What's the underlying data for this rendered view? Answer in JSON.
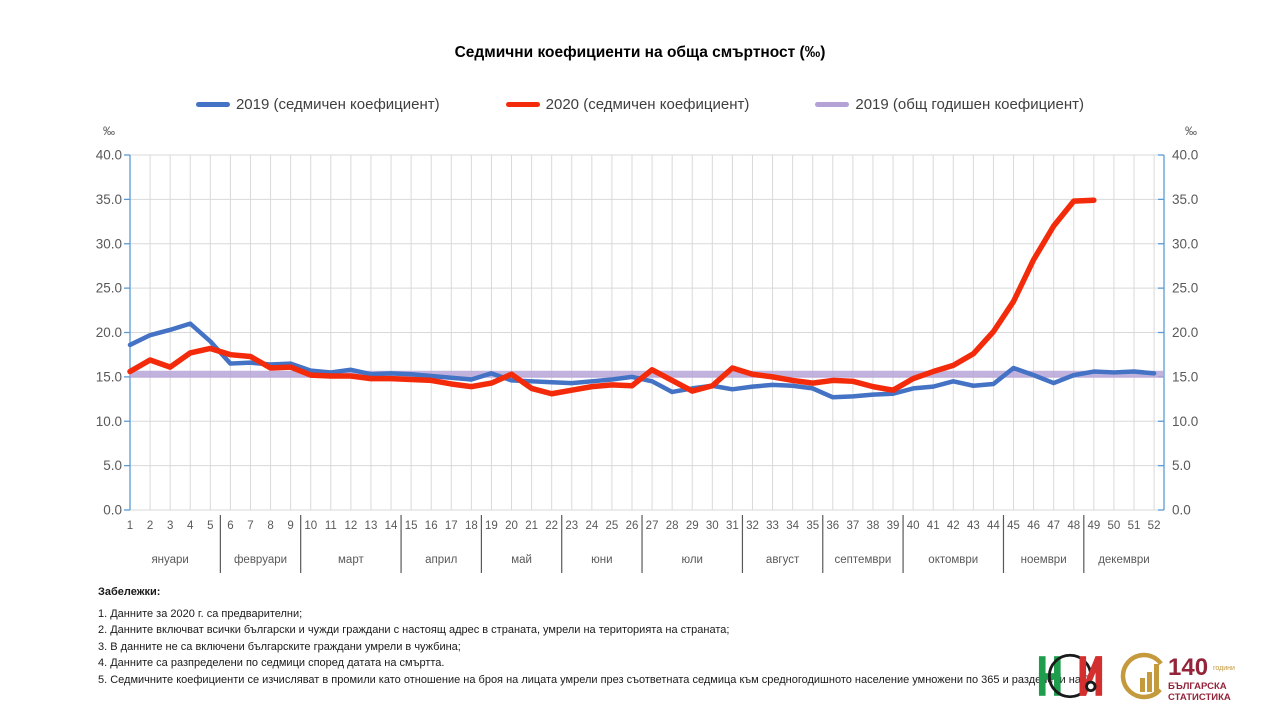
{
  "title": "Седмични коефициенти на обща смъртност (‰)",
  "legend": [
    {
      "label": "2019 (седмичен коефициент)",
      "color": "#4472C4"
    },
    {
      "label": "2020 (седмичен коефициент)",
      "color": "#F32B0A"
    },
    {
      "label": "2019 (общ годишен коефициент)",
      "color": "#B4A1D6"
    }
  ],
  "axis": {
    "unit": "‰"
  },
  "chart_data": {
    "type": "line",
    "title": "Седмични коефициенти на обща смъртност (‰)",
    "ylim": [
      0,
      40
    ],
    "ytick_step": 5,
    "unit": "‰",
    "grid": true,
    "legend_position": "top",
    "x": [
      1,
      2,
      3,
      4,
      5,
      6,
      7,
      8,
      9,
      10,
      11,
      12,
      13,
      14,
      15,
      16,
      17,
      18,
      19,
      20,
      21,
      22,
      23,
      24,
      25,
      26,
      27,
      28,
      29,
      30,
      31,
      32,
      33,
      34,
      35,
      36,
      37,
      38,
      39,
      40,
      41,
      42,
      43,
      44,
      45,
      46,
      47,
      48,
      49,
      50,
      51,
      52
    ],
    "series": [
      {
        "name": "2019 (седмичен коефициент)",
        "color": "#4472C4",
        "width": 4.5,
        "values": [
          18.6,
          19.7,
          20.3,
          21.0,
          19.0,
          16.5,
          16.6,
          16.4,
          16.5,
          15.7,
          15.5,
          15.8,
          15.3,
          15.4,
          15.3,
          15.1,
          14.9,
          14.7,
          15.4,
          14.6,
          14.5,
          14.4,
          14.3,
          14.5,
          14.7,
          15.0,
          14.5,
          13.3,
          13.7,
          14.0,
          13.6,
          13.9,
          14.1,
          14.0,
          13.7,
          12.7,
          12.8,
          13.0,
          13.1,
          13.7,
          13.9,
          14.5,
          14.0,
          14.2,
          16.0,
          15.2,
          14.3,
          15.2,
          15.6,
          15.5,
          15.6,
          15.4
        ]
      },
      {
        "name": "2020 (седмичен коефициент)",
        "color": "#F32B0A",
        "width": 5.5,
        "values": [
          15.6,
          16.9,
          16.1,
          17.7,
          18.2,
          17.5,
          17.3,
          16.0,
          16.1,
          15.2,
          15.1,
          15.1,
          14.8,
          14.8,
          14.7,
          14.6,
          14.2,
          13.9,
          14.3,
          15.3,
          13.7,
          13.1,
          13.5,
          13.9,
          14.1,
          14.0,
          15.8,
          14.6,
          13.4,
          14.0,
          16.0,
          15.3,
          15.0,
          14.6,
          14.3,
          14.6,
          14.5,
          13.9,
          13.5,
          14.8,
          15.6,
          16.3,
          17.6,
          20.1,
          23.5,
          28.2,
          32.0,
          34.8,
          34.9
        ]
      },
      {
        "name": "2019 (общ годишен коефициент)",
        "color": "#B4A1D6",
        "width": 7,
        "type": "constant",
        "value": 15.3
      }
    ],
    "months": [
      {
        "label": "януари",
        "from": 1,
        "to": 5
      },
      {
        "label": "февруари",
        "from": 6,
        "to": 9
      },
      {
        "label": "март",
        "from": 10,
        "to": 14
      },
      {
        "label": "април",
        "from": 15,
        "to": 18
      },
      {
        "label": "май",
        "from": 19,
        "to": 22
      },
      {
        "label": "юни",
        "from": 23,
        "to": 26
      },
      {
        "label": "юли",
        "from": 27,
        "to": 31
      },
      {
        "label": "август",
        "from": 32,
        "to": 35
      },
      {
        "label": "септември",
        "from": 36,
        "to": 39
      },
      {
        "label": "октомври",
        "from": 40,
        "to": 44
      },
      {
        "label": "ноември",
        "from": 45,
        "to": 48
      },
      {
        "label": "декември",
        "from": 49,
        "to": 52
      }
    ]
  },
  "notes": {
    "header": "Забележки:",
    "items": [
      "1. Данните за 2020 г. са предварителни;",
      "2. Данните включват всички български и чужди граждани с настоящ адрес в страната, умрели на територията на страната;",
      "3. В данните не са включени българските граждани умрели в чужбина;",
      "4. Данните са разпределени по седмици според датата на смъртта.",
      "5. Седмичните коефициенти се изчисляват в промили като отношение на броя на лицата умрели през съответната седмица към средногодишното население умножени по 365 и разделени на 7."
    ]
  },
  "logos": {
    "anniversary_number": "140",
    "anniversary_years": "години",
    "org_line1": "БЪЛГАРСКА",
    "org_line2": "СТАТИСТИКА"
  }
}
